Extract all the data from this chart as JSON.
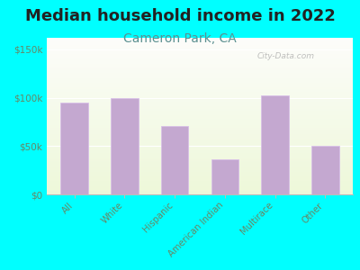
{
  "title": "Median household income in 2022",
  "subtitle": "Cameron Park, CA",
  "categories": [
    "All",
    "White",
    "Hispanic",
    "American Indian",
    "Multirace",
    "Other"
  ],
  "values": [
    95000,
    100000,
    71000,
    36000,
    102000,
    50000
  ],
  "bar_color": "#c4a8d0",
  "bar_edge_color": "#d8c0e8",
  "background_outer": "#00ffff",
  "yticks": [
    0,
    50000,
    100000,
    150000
  ],
  "ytick_labels": [
    "$0",
    "$50k",
    "$100k",
    "$150k"
  ],
  "ylim": [
    0,
    162000
  ],
  "title_fontsize": 13,
  "subtitle_fontsize": 10,
  "title_color": "#222222",
  "subtitle_color": "#5b9090",
  "tick_color": "#668866",
  "watermark": "City-Data.com"
}
